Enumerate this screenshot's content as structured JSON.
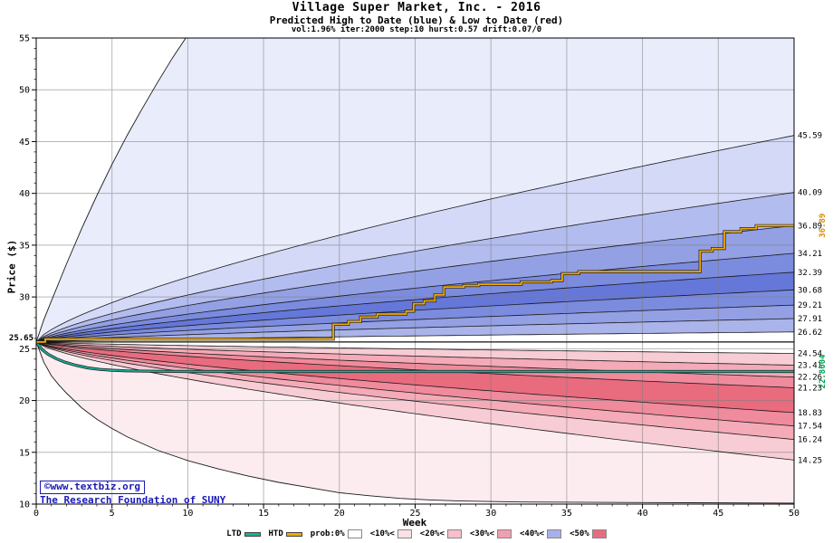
{
  "watermark": {
    "line1": "©www.textbiz.org",
    "line2": "The Research Foundation of SUNY"
  },
  "legend": {
    "items": [
      {
        "label": "LTD",
        "swatch": "line",
        "color": "#17b09a"
      },
      {
        "label": "HTD",
        "swatch": "line",
        "color": "#f2a900"
      },
      {
        "label": "prob:0%",
        "swatch": "box",
        "color": "#ffffff"
      },
      {
        "label": "<10%<",
        "swatch": "box",
        "color": "#fbe0e6"
      },
      {
        "label": "<20%<",
        "swatch": "box",
        "color": "#f6bfca"
      },
      {
        "label": "<30%<",
        "swatch": "box",
        "color": "#f09fae"
      },
      {
        "label": "<40%<",
        "swatch": "box",
        "color": "#a8b0e8"
      },
      {
        "label": "<50%",
        "swatch": "box",
        "color": "#e86c7f"
      }
    ]
  },
  "chart_data": {
    "type": "area",
    "title": "Village Super Market, Inc. - 2016",
    "subtitle": "Predicted High to Date (blue) &  Low to Date (red)",
    "params": "vol:1.96% iter:2000 step:10 hurst:0.57 drift:0.07/0",
    "xlabel": "Week",
    "ylabel": "Price ($)",
    "xlim": [
      0,
      50
    ],
    "ylim": [
      10,
      55
    ],
    "xticks": [
      0,
      5,
      10,
      15,
      20,
      25,
      30,
      35,
      40,
      45,
      50
    ],
    "yticks": [
      10,
      15,
      20,
      25,
      30,
      35,
      40,
      45,
      50,
      55
    ],
    "grid": true,
    "start_price": 25.65,
    "start_label": "25.65",
    "high_fan": {
      "boundaries": [
        26.62,
        27.91,
        29.21,
        30.68,
        32.39,
        34.21,
        36.89,
        40.09,
        45.59
      ],
      "band_colors": [
        "#aab4ea",
        "#93a0e4",
        "#7b8bde",
        "#6577d8",
        "#7b8bde",
        "#93a0e4",
        "#b3bcee",
        "#d3d9f6"
      ],
      "outer_fill": "#e9ecfb"
    },
    "low_fan": {
      "boundaries": [
        24.54,
        23.41,
        22.26,
        21.23,
        18.83,
        17.54,
        16.24,
        14.25
      ],
      "band_colors": [
        "#f8ccd4",
        "#f4aab7",
        "#ef8b9c",
        "#e96b7e",
        "#ef8b9c",
        "#f4aab7",
        "#f8ccd4"
      ],
      "outer_fill": "#fdecef"
    },
    "envelope_high": [
      [
        0,
        25.65
      ],
      [
        0.5,
        27.8
      ],
      [
        1,
        29.6
      ],
      [
        2,
        33.2
      ],
      [
        3,
        36.6
      ],
      [
        4,
        39.8
      ],
      [
        5,
        42.8
      ],
      [
        6,
        45.6
      ],
      [
        7,
        48.2
      ],
      [
        8,
        50.7
      ],
      [
        9,
        53.1
      ],
      [
        10,
        55.3
      ]
    ],
    "envelope_low": [
      [
        0,
        25.65
      ],
      [
        0.5,
        23.7
      ],
      [
        1,
        22.4
      ],
      [
        1.5,
        21.5
      ],
      [
        2,
        20.7
      ],
      [
        3,
        19.3
      ],
      [
        4,
        18.2
      ],
      [
        5,
        17.3
      ],
      [
        6,
        16.5
      ],
      [
        8,
        15.2
      ],
      [
        10,
        14.2
      ],
      [
        12,
        13.4
      ],
      [
        14,
        12.7
      ],
      [
        16,
        12.1
      ],
      [
        18,
        11.6
      ],
      [
        20,
        11.1
      ],
      [
        22,
        10.8
      ],
      [
        24,
        10.55
      ],
      [
        26,
        10.4
      ],
      [
        28,
        10.3
      ],
      [
        32,
        10.2
      ],
      [
        40,
        10.15
      ],
      [
        50,
        10.1
      ]
    ],
    "htd": {
      "name": "HTD",
      "color": "#f2a900",
      "axis_label": "36.89",
      "axis_label_color": "#d88f00",
      "final": 36.89,
      "steps": [
        [
          0,
          25.65
        ],
        [
          0.6,
          25.92
        ],
        [
          19.6,
          27.35
        ],
        [
          20.6,
          27.62
        ],
        [
          21.4,
          28.05
        ],
        [
          22.5,
          28.35
        ],
        [
          24.4,
          28.62
        ],
        [
          24.9,
          29.35
        ],
        [
          25.6,
          29.62
        ],
        [
          26.3,
          30.2
        ],
        [
          26.9,
          30.95
        ],
        [
          28.2,
          31.1
        ],
        [
          29.2,
          31.22
        ],
        [
          32,
          31.45
        ],
        [
          34,
          31.58
        ],
        [
          34.7,
          32.25
        ],
        [
          35.8,
          32.45
        ],
        [
          43.8,
          34.42
        ],
        [
          44.6,
          34.68
        ],
        [
          45.4,
          36.3
        ],
        [
          46.5,
          36.6
        ],
        [
          47.5,
          36.89
        ]
      ]
    },
    "ltd": {
      "name": "LTD",
      "color": "#17b09a",
      "axis_label": "22.8004",
      "axis_label_color": "#00a050",
      "final": 22.8,
      "points": [
        [
          0,
          25.65
        ],
        [
          0.4,
          24.9
        ],
        [
          0.8,
          24.45
        ],
        [
          1.3,
          24.05
        ],
        [
          1.9,
          23.7
        ],
        [
          2.6,
          23.4
        ],
        [
          3.4,
          23.15
        ],
        [
          4.2,
          23.0
        ],
        [
          5,
          22.92
        ],
        [
          6,
          22.86
        ],
        [
          8,
          22.82
        ],
        [
          10,
          22.8
        ],
        [
          50,
          22.8
        ]
      ]
    },
    "right_labels": [
      {
        "text": "45.59",
        "value": 45.59
      },
      {
        "text": "40.09",
        "value": 40.09
      },
      {
        "text": "36.89",
        "value": 36.89
      },
      {
        "text": "34.21",
        "value": 34.21
      },
      {
        "text": "32.39",
        "value": 32.39
      },
      {
        "text": "30.68",
        "value": 30.68
      },
      {
        "text": "29.21",
        "value": 29.21
      },
      {
        "text": "27.91",
        "value": 27.91
      },
      {
        "text": "26.62",
        "value": 26.62
      },
      {
        "text": "24.54",
        "value": 24.54
      },
      {
        "text": "23.41",
        "value": 23.41
      },
      {
        "text": "22.26",
        "value": 22.26
      },
      {
        "text": "21.23",
        "value": 21.23
      },
      {
        "text": "18.83",
        "value": 18.83
      },
      {
        "text": "17.54",
        "value": 17.54
      },
      {
        "text": "16.24",
        "value": 16.24
      },
      {
        "text": "14.25",
        "value": 14.25
      }
    ]
  }
}
